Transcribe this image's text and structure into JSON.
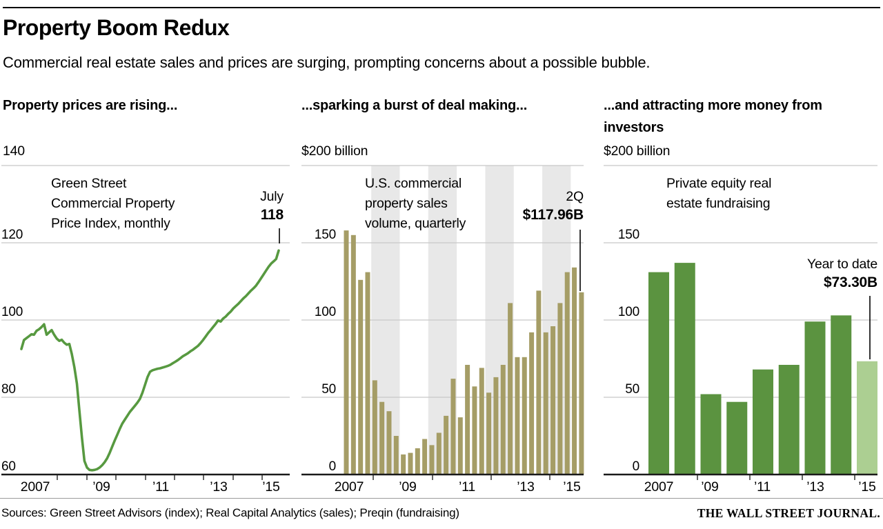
{
  "header": {
    "title": "Property Boom Redux",
    "subtitle": "Commercial real estate sales and prices are surging, prompting concerns about a possible bubble."
  },
  "colors": {
    "line_green": "#579940",
    "bar_olive": "#a59d66",
    "bar_green": "#5b9340",
    "bar_light_green": "#accf92",
    "grid": "#c8c8c8",
    "baseline": "#1a1a1a",
    "year_band": "#e8e8e8",
    "annotation_line": "#000000"
  },
  "chart_data": [
    {
      "id": "prices",
      "type": "line",
      "panel_header": "Property prices are rising...",
      "axis_top_label": "140",
      "series_label": "Green Street\nCommercial Property\nPrice Index, monthly",
      "annotation": {
        "label": "July",
        "value": "118"
      },
      "ylim": [
        60,
        140
      ],
      "y_ticks": [
        120,
        100,
        80,
        60
      ],
      "x_tick_labels": [
        "2007",
        "’09",
        "’11",
        "’13",
        "’15"
      ],
      "x_start": "2007-01",
      "x_end": "2015-07",
      "values_monthly": [
        92.5,
        94.8,
        95.3,
        95.8,
        96.3,
        96.2,
        97.2,
        97.6,
        98.2,
        98.9,
        96.2,
        96.8,
        97.4,
        96.2,
        95.2,
        94.6,
        94.9,
        94.1,
        93.6,
        93.8,
        91.2,
        87.8,
        83.5,
        76.5,
        69.5,
        63.5,
        61.8,
        61.2,
        61.1,
        61.2,
        61.4,
        61.8,
        62.4,
        63.2,
        64.2,
        65.6,
        67.2,
        68.8,
        70.3,
        71.8,
        73.2,
        74.2,
        75.2,
        76.2,
        77.0,
        77.8,
        78.6,
        79.6,
        81.2,
        83.2,
        85.2,
        86.6,
        87.0,
        87.2,
        87.4,
        87.5,
        87.7,
        87.9,
        88.1,
        88.4,
        88.8,
        89.2,
        89.6,
        90.1,
        90.6,
        91.0,
        91.4,
        91.9,
        92.3,
        92.8,
        93.3,
        94.0,
        94.8,
        95.7,
        96.6,
        97.4,
        98.2,
        99.0,
        99.9,
        99.6,
        100.4,
        100.9,
        101.6,
        102.2,
        103.0,
        103.6,
        104.2,
        104.9,
        105.6,
        106.2,
        106.9,
        107.6,
        108.2,
        108.9,
        109.8,
        110.8,
        111.8,
        112.8,
        113.8,
        114.6,
        115.2,
        115.8,
        118.0
      ]
    },
    {
      "id": "sales",
      "type": "bar",
      "panel_header": "...sparking a burst of deal making...",
      "axis_top_label": "$200 billion",
      "series_label": "U.S. commercial\nproperty sales\nvolume, quarterly",
      "annotation": {
        "label": "2Q",
        "value": "$117.96B"
      },
      "ylim": [
        0,
        200
      ],
      "y_ticks": [
        150,
        100,
        50,
        0
      ],
      "x_tick_labels": [
        "2007",
        "’09",
        "’11",
        "’13",
        "’15"
      ],
      "shaded_years": [
        2008,
        2010,
        2012,
        2014
      ],
      "categories": [
        "1Q 2007",
        "2Q 2007",
        "3Q 2007",
        "4Q 2007",
        "1Q 2008",
        "2Q 2008",
        "3Q 2008",
        "4Q 2008",
        "1Q 2009",
        "2Q 2009",
        "3Q 2009",
        "4Q 2009",
        "1Q 2010",
        "2Q 2010",
        "3Q 2010",
        "4Q 2010",
        "1Q 2011",
        "2Q 2011",
        "3Q 2011",
        "4Q 2011",
        "1Q 2012",
        "2Q 2012",
        "3Q 2012",
        "4Q 2012",
        "1Q 2013",
        "2Q 2013",
        "3Q 2013",
        "4Q 2013",
        "1Q 2014",
        "2Q 2014",
        "3Q 2014",
        "4Q 2014",
        "1Q 2015",
        "2Q 2015"
      ],
      "values": [
        158,
        155,
        126,
        131,
        61,
        47,
        41,
        25,
        13,
        14,
        17,
        23,
        19,
        27,
        38,
        62,
        37,
        71,
        57,
        69,
        53,
        63,
        71,
        111,
        76,
        76,
        92,
        119,
        92,
        96,
        111,
        131,
        134,
        117.96
      ]
    },
    {
      "id": "fundraising",
      "type": "bar",
      "panel_header": "...and attracting more money from investors",
      "axis_top_label": "$200 billion",
      "series_label": "Private equity real\nestate fundraising",
      "annotation": {
        "label": "Year to date",
        "value": "$73.30B"
      },
      "ylim": [
        0,
        200
      ],
      "y_ticks": [
        150,
        100,
        50,
        0
      ],
      "x_tick_labels": [
        "2007",
        "’09",
        "’11",
        "’13",
        "’15"
      ],
      "categories": [
        "2007",
        "2008",
        "2009",
        "2010",
        "2011",
        "2012",
        "2013",
        "2014",
        "2015"
      ],
      "values": [
        131,
        137,
        52,
        47,
        68,
        71,
        99,
        103,
        73.3
      ],
      "highlight_last": true
    }
  ],
  "footer": {
    "sources": "Sources: Green Street Advisors (index); Real Capital Analytics (sales); Preqin (fundraising)",
    "brand": "THE WALL STREET JOURNAL."
  }
}
